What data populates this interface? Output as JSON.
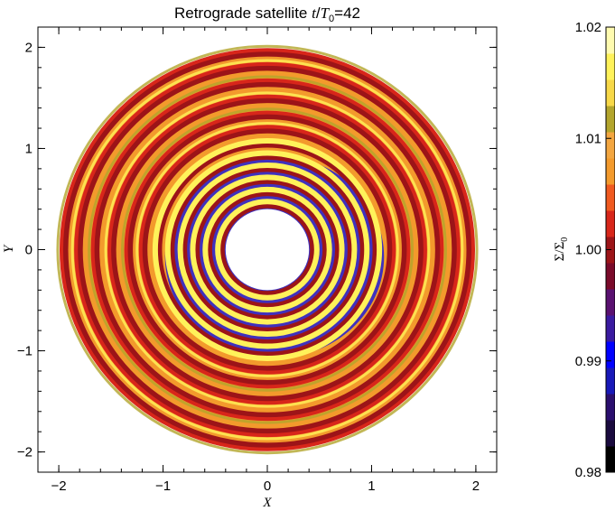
{
  "chart_data": [
    {
      "type": "heatmap",
      "title_prefix": "Retrograde satellite ",
      "title_var_t": "t",
      "title_slash": "/",
      "title_var_T": "T",
      "title_sub": "0",
      "title_suffix": "=42",
      "xlabel": "X",
      "ylabel": "Y",
      "xlim": [
        -2.2,
        2.2
      ],
      "ylim": [
        -2.2,
        2.2
      ],
      "xticks": [
        -2,
        -1,
        0,
        1,
        2
      ],
      "yticks": [
        -2,
        -1,
        0,
        1,
        2
      ],
      "xtick_labels": [
        "−2",
        "−1",
        "0",
        "1",
        "2"
      ],
      "ytick_labels": [
        "−2",
        "−1",
        "0",
        "1",
        "2"
      ],
      "disk": {
        "inner_radius": 0.4,
        "outer_radius": 1.98,
        "ring_radii": [
          0.44,
          0.56,
          0.68,
          0.8,
          0.92,
          1.04,
          1.18,
          1.32,
          1.48,
          1.64,
          1.8,
          1.94
        ],
        "colors": {
          "background": "#f39a2c",
          "dark_red": "#9c1418",
          "red": "#d8261a",
          "yellow": "#fff25a",
          "blue": "#1f1fd8",
          "olive": "#b3a52c"
        }
      }
    },
    {
      "type": "colorbar",
      "label_sym1": "Σ",
      "label_slash": "/",
      "label_sym2": "Σ",
      "label_sub": "0",
      "ticks": [
        0.98,
        0.99,
        1.0,
        1.01,
        1.02
      ],
      "tick_labels": [
        "0.98",
        "0.99",
        "1.00",
        "1.01",
        "1.02"
      ],
      "colors": [
        "#000000",
        "#1a0a3e",
        "#2a0e6e",
        "#1818b8",
        "#0000ff",
        "#3a1aa0",
        "#5a1070",
        "#7a0a2a",
        "#9c1418",
        "#d8261a",
        "#f05a20",
        "#f39a2c",
        "#f3a640",
        "#b3a52c",
        "#f7d848",
        "#fff25a",
        "#fffbb0"
      ]
    }
  ]
}
